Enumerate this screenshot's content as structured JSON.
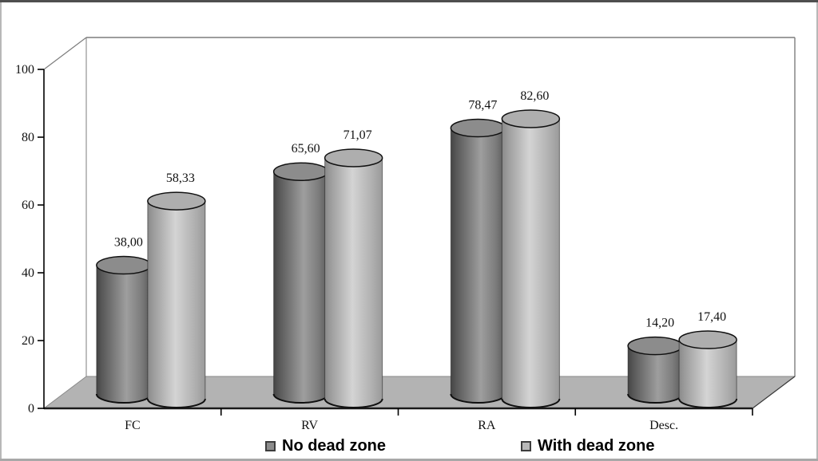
{
  "chart_data": {
    "type": "bar",
    "subtype": "3d-cylinder",
    "title": "",
    "xlabel": "",
    "ylabel": "",
    "ylim": [
      0,
      100
    ],
    "ytick_labels": [
      "0",
      "20",
      "40",
      "60",
      "80",
      "100"
    ],
    "ytick_values": [
      0,
      20,
      40,
      60,
      80,
      100
    ],
    "categories": [
      "FC",
      "RV",
      "RA",
      "Desc."
    ],
    "series": [
      {
        "name": "No dead zone",
        "values": [
          38.0,
          65.6,
          78.47,
          14.2
        ],
        "labels": [
          "38,00",
          "65,60",
          "78,47",
          "14,20"
        ],
        "swatch": "#8c8c8c"
      },
      {
        "name": "With dead zone",
        "values": [
          58.33,
          71.07,
          82.6,
          17.4
        ],
        "labels": [
          "58,33",
          "71,07",
          "82,60",
          "17,40"
        ],
        "swatch": "#b8b8b8"
      }
    ],
    "legend_position": "bottom",
    "grid": false,
    "colors": {
      "floor": "#b3b3b3",
      "frame_line": "#7d7d7d",
      "axis_line": "#000000",
      "label_text": "#111111",
      "dark_top": "#8c8c8c",
      "light_top": "#aeaeae"
    }
  }
}
